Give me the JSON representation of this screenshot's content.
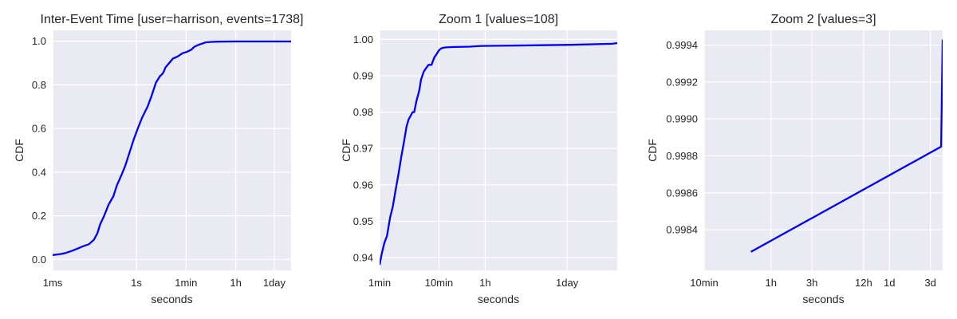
{
  "colors": {
    "plot_background": "#eaeaf2",
    "grid": "#ffffff",
    "series": "#0000ff",
    "text": "#262626"
  },
  "chart_data": [
    {
      "type": "line",
      "title": "Inter-Event Time [user=harrison, events=1738]",
      "xlabel": "seconds",
      "ylabel": "CDF",
      "xscale": "log",
      "xlim_seconds": [
        0.001,
        345600
      ],
      "ylim": [
        -0.05,
        1.05
      ],
      "x_ticks": [
        {
          "value": 0.001,
          "label": "1ms"
        },
        {
          "value": 1,
          "label": "1s"
        },
        {
          "value": 60,
          "label": "1min"
        },
        {
          "value": 3600,
          "label": "1h"
        },
        {
          "value": 86400,
          "label": "1day"
        }
      ],
      "y_ticks": [
        {
          "value": 0.0,
          "label": "0.0"
        },
        {
          "value": 0.2,
          "label": "0.2"
        },
        {
          "value": 0.4,
          "label": "0.4"
        },
        {
          "value": 0.6,
          "label": "0.6"
        },
        {
          "value": 0.8,
          "label": "0.8"
        },
        {
          "value": 1.0,
          "label": "1.0"
        }
      ],
      "series": [
        {
          "name": "CDF",
          "x": [
            0.001,
            0.002,
            0.003,
            0.005,
            0.008,
            0.012,
            0.02,
            0.03,
            0.04,
            0.05,
            0.07,
            0.1,
            0.15,
            0.2,
            0.3,
            0.4,
            0.6,
            0.8,
            1.2,
            1.6,
            2.5,
            3.5,
            5,
            7,
            8.5,
            9.5,
            11,
            15,
            20,
            30,
            45,
            60,
            90,
            120,
            180,
            240,
            300,
            500,
            1000,
            3600,
            36000,
            345600
          ],
          "y": [
            0.02,
            0.025,
            0.03,
            0.04,
            0.05,
            0.06,
            0.07,
            0.09,
            0.12,
            0.16,
            0.2,
            0.25,
            0.29,
            0.34,
            0.39,
            0.43,
            0.5,
            0.55,
            0.61,
            0.65,
            0.7,
            0.75,
            0.81,
            0.84,
            0.85,
            0.86,
            0.88,
            0.9,
            0.92,
            0.93,
            0.945,
            0.95,
            0.96,
            0.975,
            0.985,
            0.99,
            0.995,
            0.997,
            0.998,
            0.999,
            0.999,
            0.999
          ]
        }
      ]
    },
    {
      "type": "line",
      "title": "Zoom 1 [values=108]",
      "xlabel": "seconds",
      "ylabel": "CDF",
      "xscale": "log",
      "xlim_seconds": [
        60,
        604800
      ],
      "ylim": [
        0.9365,
        1.0025
      ],
      "x_ticks": [
        {
          "value": 60,
          "label": "1min"
        },
        {
          "value": 600,
          "label": "10min"
        },
        {
          "value": 3600,
          "label": "1h"
        },
        {
          "value": 86400,
          "label": "1day"
        }
      ],
      "y_ticks": [
        {
          "value": 0.94,
          "label": "0.94"
        },
        {
          "value": 0.95,
          "label": "0.95"
        },
        {
          "value": 0.96,
          "label": "0.96"
        },
        {
          "value": 0.97,
          "label": "0.97"
        },
        {
          "value": 0.98,
          "label": "0.98"
        },
        {
          "value": 0.99,
          "label": "0.99"
        },
        {
          "value": 1.0,
          "label": "1.00"
        }
      ],
      "series": [
        {
          "name": "CDF",
          "x": [
            60,
            65,
            72,
            80,
            90,
            100,
            110,
            125,
            140,
            155,
            170,
            185,
            200,
            215,
            230,
            250,
            280,
            300,
            330,
            360,
            400,
            450,
            500,
            550,
            600,
            650,
            700,
            800,
            1000,
            2000,
            3000,
            10000,
            100000,
            500000,
            604800
          ],
          "y": [
            0.938,
            0.941,
            0.944,
            0.946,
            0.951,
            0.954,
            0.958,
            0.963,
            0.968,
            0.972,
            0.976,
            0.978,
            0.979,
            0.98,
            0.98,
            0.983,
            0.986,
            0.989,
            0.991,
            0.992,
            0.993,
            0.993,
            0.995,
            0.996,
            0.997,
            0.9975,
            0.9977,
            0.9978,
            0.9979,
            0.998,
            0.9982,
            0.9983,
            0.9985,
            0.9988,
            0.999
          ]
        }
      ]
    },
    {
      "type": "line",
      "title": "Zoom 2 [values=3]",
      "xlabel": "seconds",
      "ylabel": "CDF",
      "xscale": "log",
      "xlim_seconds": [
        600,
        360000
      ],
      "ylim": [
        0.99818,
        0.99948
      ],
      "x_ticks": [
        {
          "value": 600,
          "label": "10min"
        },
        {
          "value": 3600,
          "label": "1h"
        },
        {
          "value": 10800,
          "label": "3h"
        },
        {
          "value": 43200,
          "label": "12h"
        },
        {
          "value": 86400,
          "label": "1d"
        },
        {
          "value": 259200,
          "label": "3d"
        }
      ],
      "y_ticks": [
        {
          "value": 0.9984,
          "label": "0.9984"
        },
        {
          "value": 0.9986,
          "label": "0.9986"
        },
        {
          "value": 0.9988,
          "label": "0.9988"
        },
        {
          "value": 0.999,
          "label": "0.9990"
        },
        {
          "value": 0.9992,
          "label": "0.9992"
        },
        {
          "value": 0.9994,
          "label": "0.9994"
        }
      ],
      "series": [
        {
          "name": "CDF",
          "x": [
            2100,
            345600,
            360000
          ],
          "y": [
            0.99828,
            0.99885,
            0.99943
          ]
        }
      ]
    }
  ]
}
